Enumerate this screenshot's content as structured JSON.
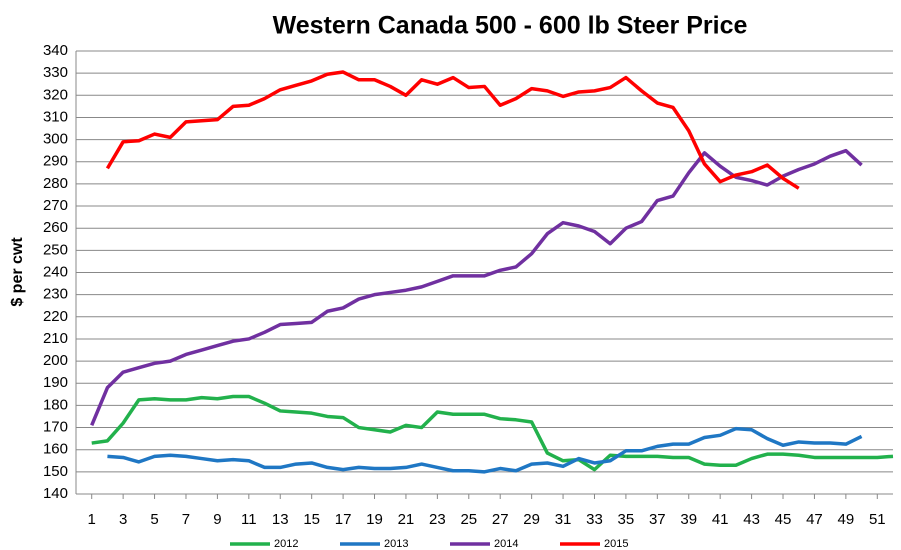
{
  "chart_data": {
    "type": "line",
    "title": "Western Canada 500 - 600 lb Steer Price",
    "y_label": "$ per cwt",
    "x": [
      1,
      2,
      3,
      4,
      5,
      6,
      7,
      8,
      9,
      10,
      11,
      12,
      13,
      14,
      15,
      16,
      17,
      18,
      19,
      20,
      21,
      22,
      23,
      24,
      25,
      26,
      27,
      28,
      29,
      30,
      31,
      32,
      33,
      34,
      35,
      36,
      37,
      38,
      39,
      40,
      41,
      42,
      43,
      44,
      45,
      46,
      47,
      48,
      49,
      50,
      51,
      52
    ],
    "xlim": [
      0,
      52
    ],
    "xticks": [
      1,
      3,
      5,
      7,
      9,
      11,
      13,
      15,
      17,
      19,
      21,
      23,
      25,
      27,
      29,
      31,
      33,
      35,
      37,
      39,
      41,
      43,
      45,
      47,
      49,
      51
    ],
    "ylim": [
      140,
      340
    ],
    "yticks": [
      140,
      150,
      160,
      170,
      180,
      190,
      200,
      210,
      220,
      230,
      240,
      250,
      260,
      270,
      280,
      290,
      300,
      310,
      320,
      330,
      340
    ],
    "grid": true,
    "legend": "bottom",
    "series": [
      {
        "name": "2012",
        "color": "#22b14c",
        "values": [
          163,
          164,
          172,
          182.5,
          183,
          182.5,
          182.5,
          183.5,
          183,
          184,
          184,
          181,
          177.5,
          177,
          176.5,
          175,
          174.5,
          170,
          169,
          168,
          171,
          170,
          177,
          176,
          176,
          176,
          174,
          173.5,
          172.5,
          158.5,
          155,
          155.5,
          151,
          157.5,
          157,
          157,
          157,
          156.5,
          156.5,
          153.5,
          153,
          153,
          156,
          158,
          158,
          157.5,
          156.5,
          156.5,
          156.5,
          156.5,
          156.5,
          157
        ]
      },
      {
        "name": "2013",
        "color": "#1f77c4",
        "values": [
          null,
          157,
          156.5,
          154.5,
          157,
          157.5,
          157,
          156,
          155,
          155.5,
          155,
          152,
          152,
          153.5,
          154,
          152,
          151,
          152,
          151.5,
          151.5,
          152,
          153.5,
          152,
          150.5,
          150.5,
          150,
          151.5,
          150.5,
          153.5,
          154,
          152.5,
          156,
          154,
          155,
          159.5,
          159.5,
          161.5,
          162.5,
          162.5,
          165.5,
          166.5,
          169.5,
          169,
          165,
          162,
          163.5,
          163,
          163,
          162.5,
          166,
          null,
          null
        ]
      },
      {
        "name": "2014",
        "color": "#7030a0",
        "values": [
          171,
          188,
          195,
          197,
          199,
          200,
          203,
          205,
          207,
          209,
          210,
          213,
          216.5,
          217,
          217.5,
          222.5,
          224,
          228,
          230,
          231,
          232,
          233.5,
          236,
          238.5,
          238.5,
          238.5,
          241,
          242.5,
          248.5,
          257.5,
          262.5,
          261,
          258.5,
          253,
          260,
          263,
          272.5,
          274.5,
          285,
          294,
          288,
          283,
          281.5,
          279.5,
          283.5,
          286.5,
          289,
          292.5,
          295,
          288.5,
          null,
          null
        ]
      },
      {
        "name": "2015",
        "color": "#ff0000",
        "values": [
          null,
          287,
          299,
          299.5,
          302.5,
          301,
          308,
          308.5,
          309,
          315,
          315.5,
          318.5,
          322.5,
          324.5,
          326.5,
          329.5,
          330.5,
          327,
          327,
          324,
          320,
          327,
          325,
          328,
          323.5,
          324,
          315.5,
          318.5,
          323,
          322,
          319.5,
          321.5,
          322,
          323.5,
          328,
          322,
          316.5,
          314.5,
          304,
          289,
          281,
          284,
          285.5,
          288.5,
          282.5,
          278,
          null,
          null,
          null,
          null,
          null,
          null
        ]
      }
    ]
  }
}
